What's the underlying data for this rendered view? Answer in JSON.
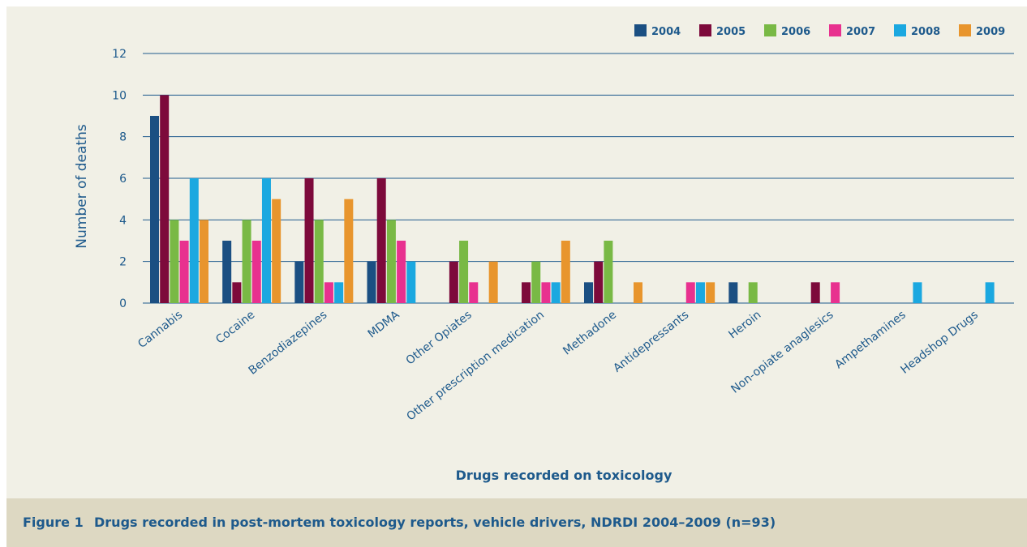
{
  "caption": {
    "figure_label": "Figure 1",
    "text": "Drugs recorded in post-mortem toxicology reports, vehicle drivers, NDRDI 2004–2009 (n=93)"
  },
  "chart_data": {
    "type": "bar",
    "title": "",
    "xlabel": "Drugs recorded on toxicology",
    "ylabel": "Number of deaths",
    "ylim": [
      0,
      12
    ],
    "yticks": [
      0,
      2,
      4,
      6,
      8,
      10,
      12
    ],
    "grid": true,
    "legend_position": "top-right",
    "categories": [
      "Cannabis",
      "Cocaine",
      "Benzodiazepines",
      "MDMA",
      "Other Opiates",
      "Other prescription medication",
      "Methadone",
      "Antidepressants",
      "Heroin",
      "Non-opiate anaglesics",
      "Ampethamines",
      "Headshop Drugs"
    ],
    "series": [
      {
        "name": "2004",
        "color": "#1b4f82",
        "values": [
          9,
          3,
          2,
          2,
          0,
          0,
          1,
          0,
          1,
          0,
          0,
          0
        ]
      },
      {
        "name": "2005",
        "color": "#7d0a3b",
        "values": [
          10,
          1,
          6,
          6,
          2,
          1,
          2,
          0,
          0,
          1,
          0,
          0
        ]
      },
      {
        "name": "2006",
        "color": "#79b945",
        "values": [
          4,
          4,
          4,
          4,
          3,
          2,
          3,
          0,
          1,
          0,
          0,
          0
        ]
      },
      {
        "name": "2007",
        "color": "#e8318f",
        "values": [
          3,
          3,
          1,
          3,
          1,
          1,
          0,
          1,
          0,
          1,
          0,
          0
        ]
      },
      {
        "name": "2008",
        "color": "#1ba8e0",
        "values": [
          6,
          6,
          1,
          2,
          0,
          1,
          0,
          1,
          0,
          0,
          1,
          1
        ]
      },
      {
        "name": "2009",
        "color": "#e8952d",
        "values": [
          4,
          5,
          5,
          0,
          2,
          3,
          1,
          1,
          0,
          0,
          0,
          0
        ]
      }
    ]
  }
}
